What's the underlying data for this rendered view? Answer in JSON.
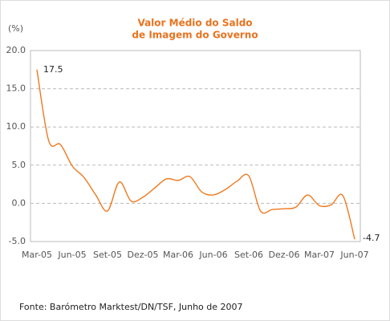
{
  "chart_data": {
    "type": "line",
    "title": [
      "Valor Médio do Saldo",
      "de Imagem do Governo"
    ],
    "y_label": "(%)",
    "source": "Fonte: Barómetro Marktest/DN/TSF, Junho de 2007",
    "categories": [
      "Mar-05",
      null,
      null,
      "Jun-05",
      null,
      null,
      "Set-05",
      null,
      null,
      "Dez-05",
      null,
      null,
      "Mar-06",
      null,
      null,
      "Jun-06",
      null,
      null,
      "Set-06",
      null,
      null,
      "Dez-06",
      null,
      null,
      "Mar-07",
      null,
      null,
      "Jun-07"
    ],
    "series": [
      {
        "name": "Saldo",
        "color": "#ee7a22",
        "values": [
          17.5,
          8.2,
          7.7,
          4.9,
          3.4,
          1.1,
          -1.0,
          2.8,
          0.3,
          0.8,
          2.0,
          3.2,
          3.0,
          3.5,
          1.5,
          1.1,
          1.8,
          2.9,
          3.6,
          -1.0,
          -0.8,
          -0.7,
          -0.5,
          1.1,
          -0.3,
          -0.2,
          1.0,
          -4.7
        ]
      }
    ],
    "ylim": [
      -5,
      20
    ],
    "yticks": [
      {
        "value": -5,
        "label": "-5.0"
      },
      {
        "value": 0,
        "label": "0.0"
      },
      {
        "value": 5,
        "label": "5.0"
      },
      {
        "value": 10,
        "label": "10.0"
      },
      {
        "value": 15,
        "label": "15.0"
      },
      {
        "value": 20,
        "label": "20.0"
      }
    ],
    "grid": true
  }
}
